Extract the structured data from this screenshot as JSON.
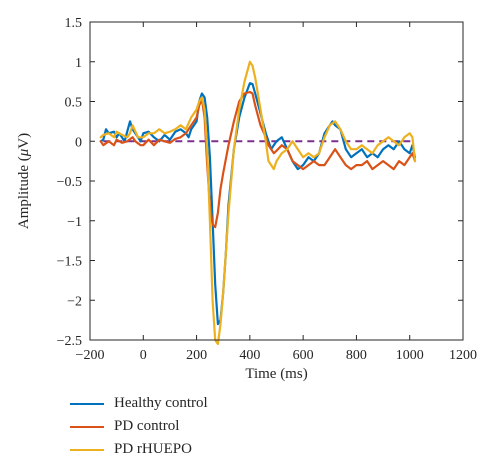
{
  "chart_data": {
    "type": "line",
    "xlabel": "Time (ms)",
    "ylabel_prefix": "Amplitude (",
    "ylabel_unit_symbol": "μ",
    "ylabel_suffix": "V)",
    "xlim": [
      -200,
      1200
    ],
    "ylim": [
      -2.5,
      1.5
    ],
    "xticks": [
      -200,
      0,
      200,
      400,
      600,
      800,
      1000,
      1200
    ],
    "yticks": [
      -2.5,
      -2,
      -1.5,
      -1,
      -0.5,
      0,
      0.5,
      1,
      1.5
    ],
    "baseline": {
      "y": 0,
      "x": [
        -150,
        1020
      ],
      "color": "#7e2f8e",
      "style": "dashed"
    },
    "legend_position": "bottom-left",
    "series": [
      {
        "name": "Healthy control",
        "color": "#0072bd",
        "x": [
          -160,
          -150,
          -140,
          -130,
          -110,
          -100,
          -90,
          -70,
          -50,
          -40,
          -30,
          -10,
          0,
          20,
          40,
          60,
          80,
          100,
          120,
          140,
          160,
          170,
          180,
          200,
          210,
          220,
          230,
          240,
          250,
          260,
          270,
          280,
          290,
          300,
          310,
          320,
          340,
          360,
          380,
          400,
          410,
          420,
          440,
          460,
          470,
          480,
          490,
          500,
          520,
          540,
          560,
          580,
          600,
          620,
          640,
          660,
          680,
          700,
          710,
          720,
          740,
          760,
          780,
          800,
          820,
          840,
          860,
          880,
          900,
          920,
          940,
          960,
          980,
          1000,
          1010,
          1020
        ],
        "y": [
          0.0,
          0.02,
          0.15,
          0.1,
          0.12,
          0.05,
          0.1,
          0.0,
          0.25,
          0.15,
          0.1,
          0.0,
          0.1,
          0.12,
          0.05,
          0.0,
          0.08,
          0.02,
          0.12,
          0.15,
          0.1,
          0.05,
          0.15,
          0.25,
          0.5,
          0.6,
          0.55,
          0.3,
          -0.2,
          -1.0,
          -1.8,
          -2.3,
          -2.25,
          -1.9,
          -1.4,
          -0.8,
          -0.1,
          0.3,
          0.55,
          0.73,
          0.72,
          0.6,
          0.35,
          0.1,
          0.0,
          -0.1,
          -0.05,
          0.0,
          0.05,
          -0.1,
          -0.25,
          -0.35,
          -0.3,
          -0.2,
          -0.25,
          -0.15,
          0.1,
          0.2,
          0.25,
          0.2,
          0.15,
          -0.1,
          -0.2,
          -0.15,
          -0.1,
          -0.2,
          -0.15,
          -0.2,
          -0.1,
          -0.05,
          -0.1,
          0.0,
          -0.1,
          -0.15,
          -0.05,
          -0.2
        ]
      },
      {
        "name": "PD control",
        "color": "#d95319",
        "x": [
          -160,
          -150,
          -130,
          -110,
          -100,
          -80,
          -60,
          -40,
          -30,
          -10,
          0,
          20,
          40,
          60,
          80,
          100,
          120,
          140,
          160,
          180,
          200,
          210,
          220,
          230,
          240,
          250,
          260,
          270,
          280,
          290,
          300,
          320,
          340,
          360,
          380,
          400,
          410,
          420,
          440,
          460,
          470,
          480,
          490,
          500,
          520,
          540,
          560,
          580,
          600,
          620,
          640,
          660,
          680,
          700,
          720,
          740,
          760,
          780,
          800,
          820,
          840,
          860,
          880,
          900,
          920,
          940,
          960,
          980,
          1000,
          1010,
          1020
        ],
        "y": [
          0.0,
          -0.05,
          0.0,
          -0.05,
          0.02,
          -0.02,
          0.0,
          0.05,
          0.0,
          -0.05,
          -0.05,
          0.02,
          -0.05,
          0.02,
          0.0,
          -0.02,
          0.03,
          0.05,
          0.1,
          0.2,
          0.3,
          0.45,
          0.53,
          0.3,
          -0.3,
          -0.8,
          -1.05,
          -1.08,
          -0.9,
          -0.6,
          -0.4,
          -0.05,
          0.25,
          0.5,
          0.6,
          0.62,
          0.6,
          0.45,
          0.2,
          0.05,
          -0.05,
          -0.1,
          -0.15,
          -0.12,
          -0.05,
          -0.1,
          -0.25,
          -0.3,
          -0.35,
          -0.3,
          -0.25,
          -0.3,
          -0.3,
          -0.2,
          -0.1,
          -0.2,
          -0.3,
          -0.35,
          -0.3,
          -0.3,
          -0.25,
          -0.35,
          -0.3,
          -0.25,
          -0.3,
          -0.35,
          -0.25,
          -0.3,
          -0.2,
          -0.15,
          -0.25
        ]
      },
      {
        "name": "PD rHUEPO",
        "color": "#edb120",
        "x": [
          -160,
          -150,
          -130,
          -110,
          -100,
          -80,
          -60,
          -50,
          -40,
          -20,
          0,
          20,
          40,
          60,
          80,
          100,
          120,
          140,
          160,
          180,
          200,
          210,
          220,
          230,
          240,
          250,
          260,
          270,
          280,
          290,
          300,
          310,
          320,
          340,
          360,
          380,
          400,
          410,
          420,
          440,
          460,
          470,
          480,
          490,
          500,
          520,
          540,
          560,
          580,
          600,
          620,
          640,
          660,
          680,
          700,
          720,
          740,
          760,
          780,
          800,
          820,
          840,
          860,
          880,
          900,
          920,
          940,
          960,
          980,
          1000,
          1010,
          1020
        ],
        "y": [
          0.05,
          0.08,
          0.1,
          0.05,
          0.12,
          0.08,
          0.05,
          0.1,
          0.2,
          0.05,
          0.05,
          0.1,
          0.1,
          0.15,
          0.1,
          0.12,
          0.15,
          0.2,
          0.15,
          0.3,
          0.4,
          0.5,
          0.55,
          0.4,
          -0.1,
          -1.0,
          -2.0,
          -2.5,
          -2.55,
          -2.3,
          -1.9,
          -1.4,
          -0.9,
          -0.1,
          0.4,
          0.75,
          1.0,
          0.95,
          0.8,
          0.4,
          0.0,
          -0.25,
          -0.3,
          -0.35,
          -0.25,
          -0.15,
          -0.1,
          0.0,
          -0.1,
          -0.2,
          -0.15,
          -0.2,
          -0.15,
          0.05,
          0.2,
          0.25,
          0.15,
          0.0,
          -0.1,
          -0.1,
          -0.05,
          -0.1,
          -0.15,
          -0.05,
          0.0,
          0.05,
          0.0,
          -0.05,
          0.05,
          0.1,
          0.05,
          -0.25
        ]
      }
    ]
  }
}
